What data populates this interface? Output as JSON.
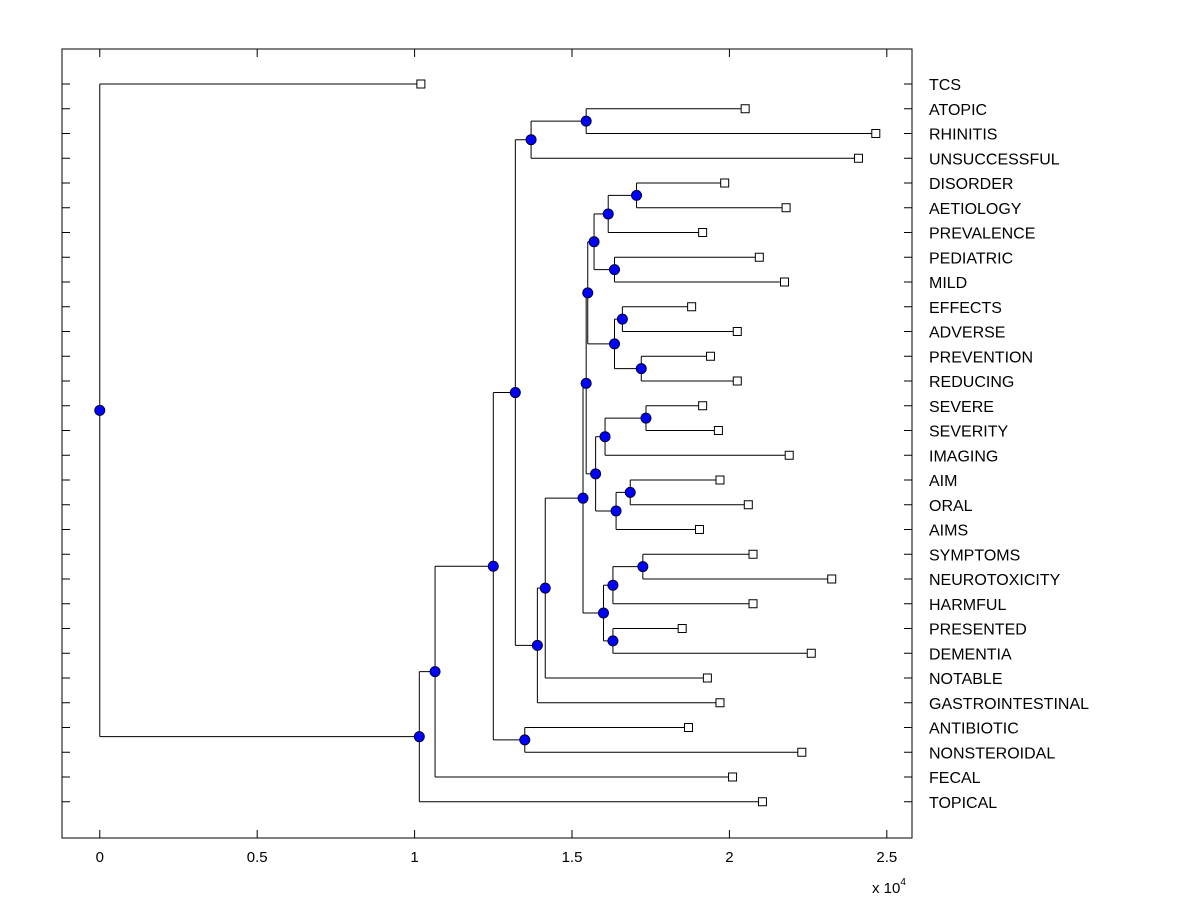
{
  "chart_data": {
    "type": "dendrogram",
    "title": "",
    "xlabel": "",
    "ylabel": "",
    "x_multiplier_label": "x 10",
    "x_multiplier_exponent": "4",
    "xlim": [
      -1200,
      25800
    ],
    "xticks": [
      0,
      5000,
      10000,
      15000,
      20000,
      25000
    ],
    "xtick_labels": [
      "0",
      "0.5",
      "1",
      "1.5",
      "2",
      "2.5"
    ],
    "colors": {
      "node": "#0000ff",
      "line": "#000000",
      "leaf_fill": "#ffffff"
    },
    "leaves": [
      {
        "name": "TCS",
        "x": 10200
      },
      {
        "name": "ATOPIC",
        "x": 20500
      },
      {
        "name": "RHINITIS",
        "x": 24650
      },
      {
        "name": "UNSUCCESSFUL",
        "x": 24100
      },
      {
        "name": "DISORDER",
        "x": 19850
      },
      {
        "name": "AETIOLOGY",
        "x": 21800
      },
      {
        "name": "PREVALENCE",
        "x": 19150
      },
      {
        "name": "PEDIATRIC",
        "x": 20950
      },
      {
        "name": "MILD",
        "x": 21750
      },
      {
        "name": "EFFECTS",
        "x": 18800
      },
      {
        "name": "ADVERSE",
        "x": 20250
      },
      {
        "name": "PREVENTION",
        "x": 19400
      },
      {
        "name": "REDUCING",
        "x": 20250
      },
      {
        "name": "SEVERE",
        "x": 19150
      },
      {
        "name": "SEVERITY",
        "x": 19650
      },
      {
        "name": "IMAGING",
        "x": 21900
      },
      {
        "name": "AIM",
        "x": 19700
      },
      {
        "name": "ORAL",
        "x": 20600
      },
      {
        "name": "AIMS",
        "x": 19050
      },
      {
        "name": "SYMPTOMS",
        "x": 20750
      },
      {
        "name": "NEUROTOXICITY",
        "x": 23250
      },
      {
        "name": "HARMFUL",
        "x": 20750
      },
      {
        "name": "PRESENTED",
        "x": 18500
      },
      {
        "name": "DEMENTIA",
        "x": 22600
      },
      {
        "name": "NOTABLE",
        "x": 19300
      },
      {
        "name": "GASTROINTESTINAL",
        "x": 19700
      },
      {
        "name": "ANTIBIOTIC",
        "x": 18700
      },
      {
        "name": "NONSTEROIDAL",
        "x": 22300
      },
      {
        "name": "FECAL",
        "x": 20100
      },
      {
        "name": "TOPICAL",
        "x": 21050
      }
    ],
    "nodes": [
      {
        "id": "n_atopic_rhin",
        "x": 15450,
        "children": [
          "L1",
          "L2"
        ]
      },
      {
        "id": "n_rhin_unsucc",
        "x": 13700,
        "children": [
          "n_atopic_rhin",
          "L3"
        ]
      },
      {
        "id": "n_disorder_aet",
        "x": 17050,
        "children": [
          "L4",
          "L5"
        ]
      },
      {
        "id": "n_prev",
        "x": 16150,
        "children": [
          "n_disorder_aet",
          "L6"
        ]
      },
      {
        "id": "n_ped_mild",
        "x": 16350,
        "children": [
          "L7",
          "L8"
        ]
      },
      {
        "id": "n_block_a",
        "x": 15700,
        "children": [
          "n_prev",
          "n_ped_mild"
        ]
      },
      {
        "id": "n_eff_adv",
        "x": 16600,
        "children": [
          "L9",
          "L10"
        ]
      },
      {
        "id": "n_prev_red",
        "x": 17200,
        "children": [
          "L11",
          "L12"
        ]
      },
      {
        "id": "n_block_b",
        "x": 16350,
        "children": [
          "n_eff_adv",
          "n_prev_red"
        ]
      },
      {
        "id": "n_block_ab",
        "x": 15500,
        "children": [
          "n_block_a",
          "n_block_b"
        ]
      },
      {
        "id": "n_sev",
        "x": 17350,
        "children": [
          "L13",
          "L14"
        ]
      },
      {
        "id": "n_imaging",
        "x": 16050,
        "children": [
          "n_sev",
          "L15"
        ]
      },
      {
        "id": "n_aim_oral",
        "x": 16850,
        "children": [
          "L16",
          "L17"
        ]
      },
      {
        "id": "n_aims",
        "x": 16400,
        "children": [
          "n_aim_oral",
          "L18"
        ]
      },
      {
        "id": "n_block_c",
        "x": 15750,
        "children": [
          "n_imaging",
          "n_aims"
        ]
      },
      {
        "id": "n_block_abc",
        "x": 15450,
        "children": [
          "n_block_ab",
          "n_block_c"
        ]
      },
      {
        "id": "n_symp_neuro",
        "x": 17250,
        "children": [
          "L19",
          "L20"
        ]
      },
      {
        "id": "n_harmful",
        "x": 16300,
        "children": [
          "n_symp_neuro",
          "L21"
        ]
      },
      {
        "id": "n_pres_dem",
        "x": 16300,
        "children": [
          "L22",
          "L23"
        ]
      },
      {
        "id": "n_block_d",
        "x": 16000,
        "children": [
          "n_harmful",
          "n_pres_dem"
        ]
      },
      {
        "id": "n_block_abcd",
        "x": 15350,
        "children": [
          "n_block_abc",
          "n_block_d"
        ]
      },
      {
        "id": "n_notable",
        "x": 14150,
        "children": [
          "n_block_abcd",
          "L24"
        ]
      },
      {
        "id": "n_gastro",
        "x": 13900,
        "children": [
          "n_notable",
          "L25"
        ]
      },
      {
        "id": "n_main",
        "x": 13200,
        "children": [
          "n_rhin_unsucc",
          "n_gastro"
        ]
      },
      {
        "id": "n_anti_nons",
        "x": 13500,
        "children": [
          "L26",
          "L27"
        ]
      },
      {
        "id": "n_main2",
        "x": 12500,
        "children": [
          "n_main",
          "n_anti_nons"
        ]
      },
      {
        "id": "n_fecal",
        "x": 10650,
        "children": [
          "n_main2",
          "L28"
        ]
      },
      {
        "id": "n_topical",
        "x": 10150,
        "children": [
          "n_fecal",
          "L29"
        ]
      },
      {
        "id": "n_root",
        "x": 0,
        "children": [
          "L0",
          "n_topical"
        ]
      }
    ]
  }
}
